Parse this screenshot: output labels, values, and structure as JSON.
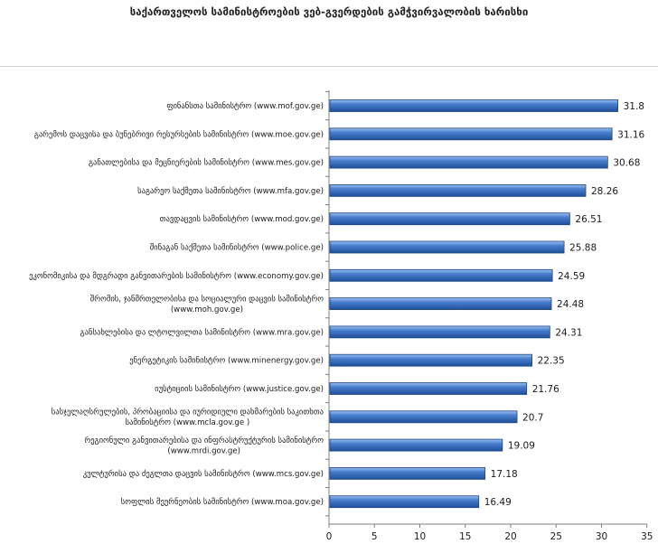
{
  "chart_data": {
    "type": "bar",
    "orientation": "horizontal",
    "title": "საქართველოს სამინისტროების ვებ-გვერდების გამჭვირვალობის ხარისხი",
    "categories": [
      [
        "ფინანსთა სამინისტრო (www.mof.gov.ge)"
      ],
      [
        "გარემოს დაცვისა და ბუნებრივი რესურსების სამინისტრო (www.moe.gov.ge)"
      ],
      [
        "განათლებისა და მეცნიერების სამინისტრო (www.mes.gov.ge)"
      ],
      [
        "საგარეო საქმეთა სამინისტრო (www.mfa.gov.ge)"
      ],
      [
        "თავდაცვის სამინისტრო (www.mod.gov.ge)"
      ],
      [
        "შინაგან საქმეთა სამინისტრო (www.police.ge)"
      ],
      [
        "ეკონომიკისა და მდგრადი განვითარების სამინისტრო (www.economy.gov.ge)"
      ],
      [
        "შრომის, ჯანმრთელობისა და სოციალური დაცვის სამინისტრო",
        "(www.moh.gov.ge)"
      ],
      [
        "განსახლებისა და ლტოლვილთა სამინისტრო (www.mra.gov.ge)"
      ],
      [
        "ენერგეტიკის სამინისტრო (www.minenergy.gov.ge)"
      ],
      [
        "იუსტიციის სამინისტრო (www.justice.gov.ge)"
      ],
      [
        "სასჯელაღსრულების, პრობაციისა და იურიდიული დახმარების საკითხთა",
        "სამინისტრო (www.mcla.gov.ge )"
      ],
      [
        "რეგიონული განვითარებისა და ინფრასტრუქტურის სამინისტრო",
        "(www.mrdi.gov.ge)"
      ],
      [
        "კულტურისა და ძეგლთა დაცვის სამინისტრო (www.mcs.gov.ge)"
      ],
      [
        "სოფლის მეურნეობის სამინისტრო (www.moa.gov.ge)"
      ]
    ],
    "values": [
      31.8,
      31.16,
      30.68,
      28.26,
      26.51,
      25.88,
      24.59,
      24.48,
      24.31,
      22.35,
      21.76,
      20.7,
      19.09,
      17.18,
      16.49
    ],
    "value_labels": [
      "31.8",
      "31.16",
      "30.68",
      "28.26",
      "26.51",
      "25.88",
      "24.59",
      "24.48",
      "24.31",
      "22.35",
      "21.76",
      "20.7",
      "19.09",
      "17.18",
      "16.49"
    ],
    "xlim": [
      0,
      35
    ],
    "xticks": [
      0,
      5,
      10,
      15,
      20,
      25,
      30,
      35
    ],
    "grid": false,
    "legend": "none",
    "bar_color": "#3a6fbf"
  }
}
